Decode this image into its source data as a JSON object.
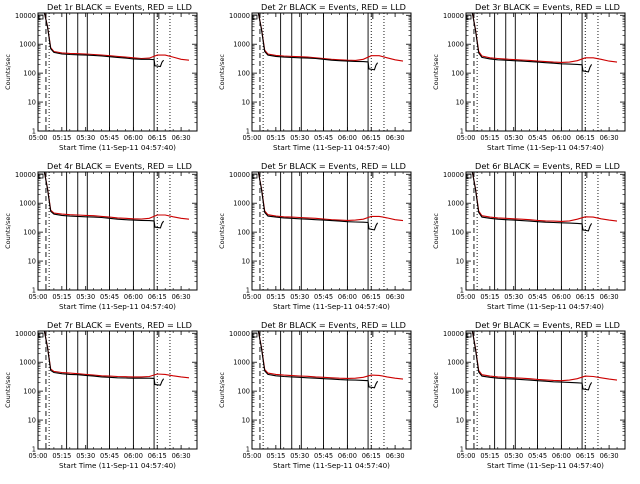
{
  "colors": {
    "events": "#000000",
    "lld": "#cc0000",
    "axis": "#000000",
    "background": "#ffffff"
  },
  "common": {
    "xlabel": "Start Time (11-Sep-11 04:57:40)",
    "ylabel": "Counts/sec",
    "x_tick_labels": [
      "05:00",
      "05:15",
      "05:30",
      "05:45",
      "06:00",
      "06:15",
      "06:30"
    ],
    "y_tick_labels": [
      "1",
      "10",
      "100",
      "1000",
      "10000"
    ],
    "x_tick_values_min": [
      0,
      15,
      30,
      45,
      60,
      75,
      90
    ],
    "y_tick_values": [
      1,
      10,
      100,
      1000,
      10000
    ],
    "xlim_min": [
      0,
      100
    ],
    "ylim": [
      1,
      12000
    ],
    "y_scale": "log"
  },
  "chart_data": [
    {
      "type": "line",
      "title": "Det 1r BLACK = Events, RED = LLD",
      "x_unit": "minutes after 05:00",
      "series": [
        {
          "name": "Events",
          "color": "#000000",
          "x": [
            4,
            6,
            8,
            10,
            15,
            20,
            25,
            30,
            35,
            40,
            45,
            50,
            55,
            60,
            65,
            70,
            73,
            73.5,
            77,
            78,
            79
          ],
          "y": [
            14000,
            4000,
            700,
            520,
            460,
            440,
            430,
            420,
            410,
            390,
            370,
            350,
            330,
            310,
            300,
            300,
            295,
            180,
            170,
            240,
            280
          ]
        },
        {
          "name": "LLD",
          "color": "#cc0000",
          "x": [
            4,
            6,
            8,
            10,
            15,
            20,
            25,
            30,
            35,
            40,
            45,
            50,
            55,
            60,
            65,
            70,
            75,
            80,
            85,
            90,
            95
          ],
          "y": [
            14000,
            4200,
            760,
            560,
            500,
            480,
            470,
            460,
            440,
            420,
            400,
            380,
            360,
            340,
            320,
            330,
            420,
            420,
            360,
            300,
            280
          ]
        }
      ],
      "vlines_dashed": [
        5
      ],
      "vlines_dotted": [
        7,
        75,
        83
      ],
      "vlines_solid": [
        18,
        25,
        31,
        45,
        60,
        73
      ],
      "ylim": [
        1,
        12000
      ],
      "xlim": [
        0,
        100
      ]
    },
    {
      "type": "line",
      "title": "Det 2r BLACK = Events, RED = LLD",
      "x_unit": "minutes after 05:00",
      "series": [
        {
          "name": "Events",
          "color": "#000000",
          "x": [
            4,
            6,
            8,
            10,
            15,
            20,
            25,
            30,
            35,
            40,
            45,
            50,
            55,
            60,
            65,
            70,
            73,
            73.5,
            77,
            78,
            79
          ],
          "y": [
            12000,
            3200,
            560,
            420,
            380,
            360,
            350,
            340,
            330,
            320,
            300,
            280,
            270,
            260,
            255,
            250,
            245,
            140,
            130,
            190,
            230
          ]
        },
        {
          "name": "LLD",
          "color": "#cc0000",
          "x": [
            4,
            6,
            8,
            10,
            15,
            20,
            25,
            30,
            35,
            40,
            45,
            50,
            55,
            60,
            65,
            70,
            75,
            80,
            85,
            90,
            95
          ],
          "y": [
            12000,
            3400,
            620,
            460,
            410,
            390,
            380,
            370,
            360,
            340,
            320,
            300,
            290,
            280,
            275,
            300,
            400,
            400,
            340,
            290,
            260
          ]
        }
      ],
      "vlines_dashed": [
        5
      ],
      "vlines_dotted": [
        7,
        75,
        83
      ],
      "vlines_solid": [
        18,
        25,
        31,
        45,
        60,
        73
      ],
      "ylim": [
        1,
        12000
      ],
      "xlim": [
        0,
        100
      ]
    },
    {
      "type": "line",
      "title": "Det 3r BLACK = Events, RED = LLD",
      "x_unit": "minutes after 05:00",
      "series": [
        {
          "name": "Events",
          "color": "#000000",
          "x": [
            4,
            6,
            8,
            10,
            15,
            20,
            25,
            30,
            35,
            40,
            45,
            50,
            55,
            60,
            65,
            70,
            73,
            73.5,
            77,
            78,
            79
          ],
          "y": [
            12000,
            3000,
            500,
            350,
            310,
            290,
            280,
            270,
            260,
            250,
            240,
            230,
            220,
            210,
            205,
            200,
            195,
            120,
            110,
            160,
            200
          ]
        },
        {
          "name": "LLD",
          "color": "#cc0000",
          "x": [
            4,
            6,
            8,
            10,
            15,
            20,
            25,
            30,
            35,
            40,
            45,
            50,
            55,
            60,
            65,
            70,
            75,
            80,
            85,
            90,
            95
          ],
          "y": [
            12000,
            3200,
            560,
            390,
            340,
            320,
            305,
            295,
            285,
            275,
            260,
            250,
            240,
            235,
            240,
            270,
            340,
            340,
            300,
            260,
            240
          ]
        }
      ],
      "vlines_dashed": [
        5
      ],
      "vlines_dotted": [
        7,
        75,
        83
      ],
      "vlines_solid": [
        18,
        25,
        31,
        45,
        60,
        73
      ],
      "ylim": [
        1,
        12000
      ],
      "xlim": [
        0,
        100
      ]
    },
    {
      "type": "line",
      "title": "Det 4r BLACK = Events, RED = LLD",
      "x_unit": "minutes after 05:00",
      "series": [
        {
          "name": "Events",
          "color": "#000000",
          "x": [
            4,
            6,
            8,
            10,
            15,
            20,
            25,
            30,
            35,
            40,
            45,
            50,
            55,
            60,
            65,
            70,
            73,
            73.5,
            77,
            78,
            79
          ],
          "y": [
            12000,
            3100,
            520,
            420,
            380,
            360,
            350,
            340,
            330,
            320,
            300,
            280,
            270,
            260,
            255,
            250,
            245,
            150,
            140,
            200,
            240
          ]
        },
        {
          "name": "LLD",
          "color": "#cc0000",
          "x": [
            4,
            6,
            8,
            10,
            15,
            20,
            25,
            30,
            35,
            40,
            45,
            50,
            55,
            60,
            65,
            70,
            75,
            80,
            85,
            90,
            95
          ],
          "y": [
            12000,
            3300,
            580,
            460,
            420,
            400,
            390,
            380,
            370,
            350,
            330,
            310,
            300,
            290,
            285,
            300,
            390,
            390,
            340,
            300,
            280
          ]
        }
      ],
      "vlines_dashed": [
        5
      ],
      "vlines_dotted": [
        7,
        75,
        83
      ],
      "vlines_solid": [
        18,
        25,
        31,
        45,
        60,
        73
      ],
      "ylim": [
        1,
        12000
      ],
      "xlim": [
        0,
        100
      ]
    },
    {
      "type": "line",
      "title": "Det 5r BLACK = Events, RED = LLD",
      "x_unit": "minutes after 05:00",
      "series": [
        {
          "name": "Events",
          "color": "#000000",
          "x": [
            4,
            6,
            8,
            10,
            15,
            20,
            25,
            30,
            35,
            40,
            45,
            50,
            55,
            60,
            65,
            70,
            73,
            73.5,
            77,
            78,
            79
          ],
          "y": [
            12000,
            3000,
            480,
            360,
            330,
            310,
            300,
            290,
            280,
            270,
            260,
            250,
            240,
            230,
            225,
            220,
            215,
            130,
            120,
            170,
            210
          ]
        },
        {
          "name": "LLD",
          "color": "#cc0000",
          "x": [
            4,
            6,
            8,
            10,
            15,
            20,
            25,
            30,
            35,
            40,
            45,
            50,
            55,
            60,
            65,
            70,
            75,
            80,
            85,
            90,
            95
          ],
          "y": [
            12000,
            3200,
            540,
            400,
            360,
            340,
            330,
            320,
            310,
            300,
            285,
            270,
            260,
            255,
            260,
            280,
            350,
            350,
            310,
            270,
            250
          ]
        }
      ],
      "vlines_dashed": [
        5
      ],
      "vlines_dotted": [
        7,
        75,
        83
      ],
      "vlines_solid": [
        18,
        25,
        31,
        45,
        60,
        73
      ],
      "ylim": [
        1,
        12000
      ],
      "xlim": [
        0,
        100
      ]
    },
    {
      "type": "line",
      "title": "Det 6r BLACK = Events, RED = LLD",
      "x_unit": "minutes after 05:00",
      "series": [
        {
          "name": "Events",
          "color": "#000000",
          "x": [
            4,
            6,
            8,
            10,
            15,
            20,
            25,
            30,
            35,
            40,
            45,
            50,
            55,
            60,
            65,
            70,
            73,
            73.5,
            77,
            78,
            79
          ],
          "y": [
            12000,
            3000,
            480,
            330,
            300,
            280,
            270,
            260,
            250,
            240,
            230,
            220,
            215,
            210,
            205,
            200,
            195,
            120,
            110,
            160,
            200
          ]
        },
        {
          "name": "LLD",
          "color": "#cc0000",
          "x": [
            4,
            6,
            8,
            10,
            15,
            20,
            25,
            30,
            35,
            40,
            45,
            50,
            55,
            60,
            65,
            70,
            75,
            80,
            85,
            90,
            95
          ],
          "y": [
            12000,
            3200,
            540,
            370,
            330,
            310,
            300,
            290,
            280,
            270,
            255,
            245,
            240,
            235,
            245,
            280,
            340,
            330,
            290,
            260,
            240
          ]
        }
      ],
      "vlines_dashed": [
        5
      ],
      "vlines_dotted": [
        7,
        75,
        83
      ],
      "vlines_solid": [
        18,
        25,
        31,
        45,
        60,
        73
      ],
      "ylim": [
        1,
        12000
      ],
      "xlim": [
        0,
        100
      ]
    },
    {
      "type": "line",
      "title": "Det 7r BLACK = Events, RED = LLD",
      "x_unit": "minutes after 05:00",
      "series": [
        {
          "name": "Events",
          "color": "#000000",
          "x": [
            4,
            6,
            8,
            10,
            15,
            20,
            25,
            30,
            35,
            40,
            45,
            50,
            55,
            60,
            65,
            70,
            73,
            73.5,
            77,
            78,
            79
          ],
          "y": [
            12000,
            3200,
            520,
            440,
            400,
            380,
            370,
            350,
            330,
            310,
            300,
            290,
            285,
            280,
            280,
            280,
            275,
            170,
            160,
            220,
            270
          ]
        },
        {
          "name": "LLD",
          "color": "#cc0000",
          "x": [
            4,
            6,
            8,
            10,
            15,
            20,
            25,
            30,
            35,
            40,
            45,
            50,
            55,
            60,
            65,
            70,
            75,
            80,
            85,
            90,
            95
          ],
          "y": [
            12000,
            3400,
            580,
            480,
            440,
            420,
            400,
            380,
            360,
            340,
            330,
            320,
            315,
            310,
            310,
            320,
            390,
            380,
            340,
            310,
            290
          ]
        }
      ],
      "vlines_dashed": [
        5
      ],
      "vlines_dotted": [
        7,
        75,
        83
      ],
      "vlines_solid": [
        18,
        25,
        31,
        45,
        60,
        73
      ],
      "ylim": [
        1,
        12000
      ],
      "xlim": [
        0,
        100
      ]
    },
    {
      "type": "line",
      "title": "Det 8r BLACK = Events, RED = LLD",
      "x_unit": "minutes after 05:00",
      "series": [
        {
          "name": "Events",
          "color": "#000000",
          "x": [
            4,
            6,
            8,
            10,
            15,
            20,
            25,
            30,
            35,
            40,
            45,
            50,
            55,
            60,
            65,
            70,
            73,
            73.5,
            77,
            78,
            79
          ],
          "y": [
            12000,
            3000,
            500,
            380,
            340,
            320,
            310,
            300,
            290,
            280,
            270,
            260,
            250,
            245,
            240,
            235,
            230,
            140,
            130,
            180,
            220
          ]
        },
        {
          "name": "LLD",
          "color": "#cc0000",
          "x": [
            4,
            6,
            8,
            10,
            15,
            20,
            25,
            30,
            35,
            40,
            45,
            50,
            55,
            60,
            65,
            70,
            75,
            80,
            85,
            90,
            95
          ],
          "y": [
            12000,
            3200,
            560,
            420,
            380,
            360,
            345,
            335,
            325,
            310,
            300,
            290,
            280,
            275,
            280,
            300,
            360,
            350,
            310,
            280,
            260
          ]
        }
      ],
      "vlines_dashed": [
        5
      ],
      "vlines_dotted": [
        7,
        75,
        83
      ],
      "vlines_solid": [
        18,
        25,
        31,
        45,
        60,
        73
      ],
      "ylim": [
        1,
        12000
      ],
      "xlim": [
        0,
        100
      ]
    },
    {
      "type": "line",
      "title": "Det 9r BLACK = Events, RED = LLD",
      "x_unit": "minutes after 05:00",
      "series": [
        {
          "name": "Events",
          "color": "#000000",
          "x": [
            4,
            6,
            8,
            10,
            15,
            20,
            25,
            30,
            35,
            40,
            45,
            50,
            55,
            60,
            65,
            70,
            73,
            73.5,
            77,
            78,
            79
          ],
          "y": [
            12000,
            2800,
            460,
            330,
            300,
            280,
            270,
            260,
            250,
            240,
            230,
            220,
            210,
            205,
            200,
            195,
            190,
            120,
            110,
            160,
            200
          ]
        },
        {
          "name": "LLD",
          "color": "#cc0000",
          "x": [
            4,
            6,
            8,
            10,
            15,
            20,
            25,
            30,
            35,
            40,
            45,
            50,
            55,
            60,
            65,
            70,
            75,
            80,
            85,
            90,
            95
          ],
          "y": [
            12000,
            3000,
            520,
            370,
            330,
            310,
            300,
            290,
            280,
            270,
            255,
            245,
            235,
            230,
            240,
            270,
            330,
            320,
            290,
            260,
            240
          ]
        }
      ],
      "vlines_dashed": [
        5
      ],
      "vlines_dotted": [
        7,
        75,
        83
      ],
      "vlines_solid": [
        18,
        25,
        31,
        45,
        60,
        73
      ],
      "ylim": [
        1,
        12000
      ],
      "xlim": [
        0,
        100
      ]
    }
  ]
}
